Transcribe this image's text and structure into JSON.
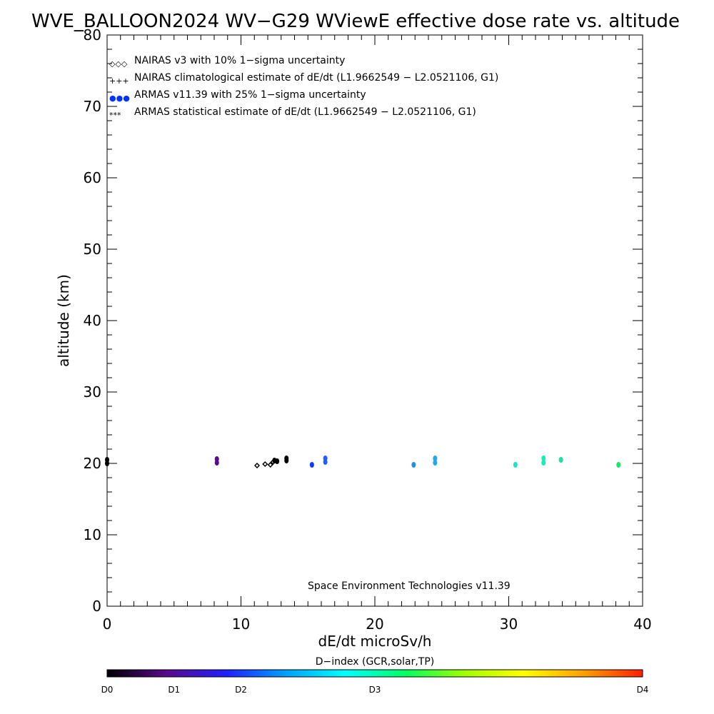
{
  "chart_data": {
    "type": "scatter",
    "title": "WVE_BALLOON2024 WV−G29 WViewE effective dose rate vs. altitude",
    "xlabel": "dE/dt microSv/h",
    "ylabel": "altitude (km)",
    "xlim": [
      0,
      40
    ],
    "ylim": [
      0,
      80
    ],
    "xticks": [
      "0",
      "10",
      "20",
      "30",
      "40"
    ],
    "yticks": [
      "0",
      "10",
      "20",
      "30",
      "40",
      "50",
      "60",
      "70",
      "80"
    ],
    "grid": false,
    "legend_position": "top-left",
    "legend": [
      {
        "symbol": "◇◇◇",
        "label": "NAIRAS v3 with 10% 1−sigma uncertainty"
      },
      {
        "symbol": "+++",
        "label": "NAIRAS climatological estimate of dE/dt (L1.9662549 − L2.0521106, G1)"
      },
      {
        "symbol": "●●●",
        "label": "ARMAS v11.39 with 25% 1−sigma uncertainty",
        "color": "#0033ff"
      },
      {
        "symbol": "***",
        "label": "ARMAS statistical estimate of dE/dt (L1.9662549 − L2.0521106, G1)"
      }
    ],
    "annotation": "Space Environment Technologies v11.39",
    "series": [
      {
        "points": [
          {
            "x": 0.0,
            "y": 20.0,
            "color": "#000000",
            "marker": "dot"
          },
          {
            "x": 0.0,
            "y": 20.5,
            "color": "#000000",
            "marker": "dot"
          },
          {
            "x": 8.2,
            "y": 20.1,
            "color": "#5a0a8c",
            "marker": "dot"
          },
          {
            "x": 8.2,
            "y": 20.6,
            "color": "#5a0a8c",
            "marker": "dot"
          },
          {
            "x": 11.2,
            "y": 19.7,
            "color": "#000000",
            "marker": "diamond"
          },
          {
            "x": 11.8,
            "y": 19.9,
            "color": "#000000",
            "marker": "diamond"
          },
          {
            "x": 12.2,
            "y": 19.8,
            "color": "#000000",
            "marker": "diamond"
          },
          {
            "x": 12.4,
            "y": 20.2,
            "color": "#000000",
            "marker": "diamond"
          },
          {
            "x": 12.5,
            "y": 20.4,
            "color": "#000000",
            "marker": "dot"
          },
          {
            "x": 12.7,
            "y": 20.3,
            "color": "#000000",
            "marker": "dot"
          },
          {
            "x": 13.4,
            "y": 20.4,
            "color": "#000000",
            "marker": "dot"
          },
          {
            "x": 13.4,
            "y": 20.7,
            "color": "#000000",
            "marker": "dot"
          },
          {
            "x": 15.3,
            "y": 19.8,
            "color": "#0a3cff",
            "marker": "dot"
          },
          {
            "x": 16.3,
            "y": 20.2,
            "color": "#1f5fff",
            "marker": "dot"
          },
          {
            "x": 16.3,
            "y": 20.7,
            "color": "#1f5fff",
            "marker": "dot"
          },
          {
            "x": 22.9,
            "y": 19.8,
            "color": "#1e90e8",
            "marker": "dot"
          },
          {
            "x": 24.5,
            "y": 20.1,
            "color": "#1aaaf0",
            "marker": "dot"
          },
          {
            "x": 24.5,
            "y": 20.7,
            "color": "#1aaaf0",
            "marker": "dot"
          },
          {
            "x": 30.5,
            "y": 19.8,
            "color": "#14e6c8",
            "marker": "dot"
          },
          {
            "x": 32.6,
            "y": 20.1,
            "color": "#14f0b4",
            "marker": "dot"
          },
          {
            "x": 32.6,
            "y": 20.7,
            "color": "#14f0b4",
            "marker": "dot"
          },
          {
            "x": 33.9,
            "y": 20.5,
            "color": "#14e6a0",
            "marker": "dot"
          },
          {
            "x": 38.2,
            "y": 19.8,
            "color": "#1ee664",
            "marker": "dot"
          }
        ]
      }
    ],
    "colorbar": {
      "title": "D−index (GCR,solar,TP)",
      "labels": [
        {
          "text": "D0",
          "pos": 0.0
        },
        {
          "text": "D1",
          "pos": 0.125
        },
        {
          "text": "D2",
          "pos": 0.25
        },
        {
          "text": "D3",
          "pos": 0.5
        },
        {
          "text": "D4",
          "pos": 1.0
        }
      ],
      "colors": [
        "#000000",
        "#5a0a8c",
        "#2020ff",
        "#00a0ff",
        "#00ffff",
        "#00ff64",
        "#a0ff00",
        "#ffff00",
        "#ffa000",
        "#ff2000"
      ]
    }
  }
}
